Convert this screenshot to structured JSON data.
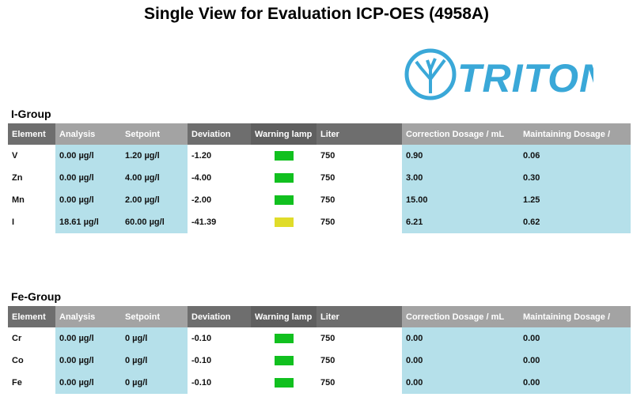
{
  "title": "Single View for Evaluation ICP-OES (4958A)",
  "logo_text": "TRITON",
  "colors": {
    "ok": "#11c01f",
    "warn": "#e0dc2a",
    "cell": "#b5e0ea"
  },
  "headers": [
    "Element",
    "Analysis",
    "Setpoint",
    "Deviation",
    "Warning lamp",
    "Liter",
    "Correction Dosage / mL",
    "Maintaining Dosage /"
  ],
  "groups": [
    {
      "name": "I-Group",
      "rows": [
        {
          "element": "V",
          "analysis": "0.00 µg/l",
          "setpoint": "1.20 µg/l",
          "deviation": "-1.20",
          "lamp": "ok",
          "liter": "750",
          "correction": "0.90",
          "maintaining": "0.06"
        },
        {
          "element": "Zn",
          "analysis": "0.00 µg/l",
          "setpoint": "4.00 µg/l",
          "deviation": "-4.00",
          "lamp": "ok",
          "liter": "750",
          "correction": "3.00",
          "maintaining": "0.30"
        },
        {
          "element": "Mn",
          "analysis": "0.00 µg/l",
          "setpoint": "2.00 µg/l",
          "deviation": "-2.00",
          "lamp": "ok",
          "liter": "750",
          "correction": "15.00",
          "maintaining": "1.25"
        },
        {
          "element": "I",
          "analysis": "18.61 µg/l",
          "setpoint": "60.00 µg/l",
          "deviation": "-41.39",
          "lamp": "warn",
          "liter": "750",
          "correction": "6.21",
          "maintaining": "0.62"
        }
      ]
    },
    {
      "name": "Fe-Group",
      "rows": [
        {
          "element": "Cr",
          "analysis": "0.00 µg/l",
          "setpoint": "0 µg/l",
          "deviation": "-0.10",
          "lamp": "ok",
          "liter": "750",
          "correction": "0.00",
          "maintaining": "0.00"
        },
        {
          "element": "Co",
          "analysis": "0.00 µg/l",
          "setpoint": "0 µg/l",
          "deviation": "-0.10",
          "lamp": "ok",
          "liter": "750",
          "correction": "0.00",
          "maintaining": "0.00"
        },
        {
          "element": "Fe",
          "analysis": "0.00 µg/l",
          "setpoint": "0 µg/l",
          "deviation": "-0.10",
          "lamp": "ok",
          "liter": "750",
          "correction": "0.00",
          "maintaining": "0.00"
        }
      ]
    }
  ]
}
